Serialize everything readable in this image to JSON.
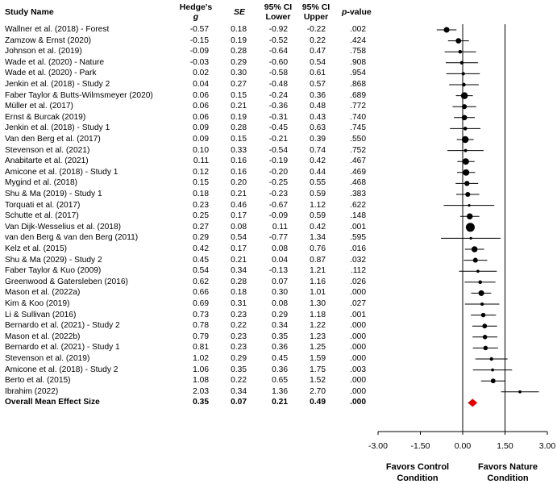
{
  "headers": {
    "study": "Study Name",
    "g_line1": "Hedge's",
    "g_line2": "g",
    "se": "SE",
    "lower_line1": "95% CI",
    "lower_line2": "Lower",
    "upper_line1": "95% CI",
    "upper_line2": "Upper",
    "p_prefix": "p",
    "p_suffix": "-value"
  },
  "rows": [
    {
      "study": "Wallner et al. (2018) - Forest",
      "g": "-0.57",
      "se": "0.18",
      "lower": "-0.92",
      "upper": "-0.22",
      "p": ".002"
    },
    {
      "study": "Zamzow & Ernst (2020)",
      "g": "-0.15",
      "se": "0.19",
      "lower": "-0.52",
      "upper": "0.22",
      "p": ".424"
    },
    {
      "study": "Johnson et al. (2019)",
      "g": "-0.09",
      "se": "0.28",
      "lower": "-0.64",
      "upper": "0.47",
      "p": ".758"
    },
    {
      "study": "Wade et al. (2020) - Nature",
      "g": "-0.03",
      "se": "0.29",
      "lower": "-0.60",
      "upper": "0.54",
      "p": ".908"
    },
    {
      "study": "Wade et al. (2020) - Park",
      "g": "0.02",
      "se": "0.30",
      "lower": "-0.58",
      "upper": "0.61",
      "p": ".954"
    },
    {
      "study": "Jenkin et al. (2018) - Study 2",
      "g": "0.04",
      "se": "0.27",
      "lower": "-0.48",
      "upper": "0.57",
      "p": ".868"
    },
    {
      "study": "Faber Taylor & Butts-Wilmsmeyer (2020)",
      "g": "0.06",
      "se": "0.15",
      "lower": "-0.24",
      "upper": "0.36",
      "p": ".689"
    },
    {
      "study": "Müller et al. (2017)",
      "g": "0.06",
      "se": "0.21",
      "lower": "-0.36",
      "upper": "0.48",
      "p": ".772"
    },
    {
      "study": "Ernst & Burcak (2019)",
      "g": "0.06",
      "se": "0.19",
      "lower": "-0.31",
      "upper": "0.43",
      "p": ".740"
    },
    {
      "study": "Jenkin et al. (2018) - Study 1",
      "g": "0.09",
      "se": "0.28",
      "lower": "-0.45",
      "upper": "0.63",
      "p": ".745"
    },
    {
      "study": "Van den Berg et al. (2017)",
      "g": "0.09",
      "se": "0.15",
      "lower": "-0.21",
      "upper": "0.39",
      "p": ".550"
    },
    {
      "study": "Stevenson et al. (2021)",
      "g": "0.10",
      "se": "0.33",
      "lower": "-0.54",
      "upper": "0.74",
      "p": ".752"
    },
    {
      "study": "Anabitarte et al. (2021)",
      "g": "0.11",
      "se": "0.16",
      "lower": "-0.19",
      "upper": "0.42",
      "p": ".467"
    },
    {
      "study": "Amicone et al. (2018) - Study 1",
      "g": "0.12",
      "se": "0.16",
      "lower": "-0.20",
      "upper": "0.44",
      "p": ".469"
    },
    {
      "study": "Mygind et al. (2018)",
      "g": "0.15",
      "se": "0.20",
      "lower": "-0.25",
      "upper": "0.55",
      "p": ".468"
    },
    {
      "study": "Shu & Ma (2019) - Study 1",
      "g": "0.18",
      "se": "0.21",
      "lower": "-0.23",
      "upper": "0.59",
      "p": ".383"
    },
    {
      "study": "Torquati et al. (2017)",
      "g": "0.23",
      "se": "0.46",
      "lower": "-0.67",
      "upper": "1.12",
      "p": ".622"
    },
    {
      "study": "Schutte et al. (2017)",
      "g": "0.25",
      "se": "0.17",
      "lower": "-0.09",
      "upper": "0.59",
      "p": ".148"
    },
    {
      "study": "Van Dijk-Wesselius et al. (2018)",
      "g": "0.27",
      "se": "0.08",
      "lower": "0.11",
      "upper": "0.42",
      "p": ".001"
    },
    {
      "study": "van den Berg & van den Berg (2011)",
      "g": "0.29",
      "se": "0.54",
      "lower": "-0.77",
      "upper": "1.34",
      "p": ".595"
    },
    {
      "study": "Kelz et al. (2015)",
      "g": "0.42",
      "se": "0.17",
      "lower": "0.08",
      "upper": "0.76",
      "p": ".016"
    },
    {
      "study": "Shu & Ma (2029) - Study 2",
      "g": "0.45",
      "se": "0.21",
      "lower": "0.04",
      "upper": "0.87",
      "p": ".032"
    },
    {
      "study": "Faber Taylor & Kuo (2009)",
      "g": "0.54",
      "se": "0.34",
      "lower": "-0.13",
      "upper": "1.21",
      "p": ".112"
    },
    {
      "study": "Greenwood & Gatersleben (2016)",
      "g": "0.62",
      "se": "0.28",
      "lower": "0.07",
      "upper": "1.16",
      "p": ".026"
    },
    {
      "study": "Mason et al. (2022a)",
      "g": "0.66",
      "se": "0.18",
      "lower": "0.30",
      "upper": "1.01",
      "p": ".000"
    },
    {
      "study": "Kim & Koo (2019)",
      "g": "0.69",
      "se": "0.31",
      "lower": "0.08",
      "upper": "1.30",
      "p": ".027"
    },
    {
      "study": "Li & Sullivan (2016)",
      "g": "0.73",
      "se": "0.23",
      "lower": "0.29",
      "upper": "1.18",
      "p": ".001"
    },
    {
      "study": "Bernardo et al. (2021) - Study 2",
      "g": "0.78",
      "se": "0.22",
      "lower": "0.34",
      "upper": "1.22",
      "p": ".000"
    },
    {
      "study": "Mason et al. (2022b)",
      "g": "0.79",
      "se": "0.23",
      "lower": "0.35",
      "upper": "1.23",
      "p": ".000"
    },
    {
      "study": "Bernardo et al. (2021) - Study 1",
      "g": "0.81",
      "se": "0.23",
      "lower": "0.36",
      "upper": "1.25",
      "p": ".000"
    },
    {
      "study": "Stevenson et al. (2019)",
      "g": "1.02",
      "se": "0.29",
      "lower": "0.45",
      "upper": "1.59",
      "p": ".000"
    },
    {
      "study": "Amicone et al. (2018) - Study 2",
      "g": "1.06",
      "se": "0.35",
      "lower": "0.36",
      "upper": "1.75",
      "p": ".003"
    },
    {
      "study": "Berto et al. (2015)",
      "g": "1.08",
      "se": "0.22",
      "lower": "0.65",
      "upper": "1.52",
      "p": ".000"
    },
    {
      "study": "Ibrahim (2022)",
      "g": "2.03",
      "se": "0.34",
      "lower": "1.36",
      "upper": "2.70",
      "p": ".000"
    }
  ],
  "overall": {
    "study": "Overall Mean Effect Size",
    "g": "0.35",
    "se": "0.07",
    "lower": "0.21",
    "upper": "0.49",
    "p": ".000"
  },
  "chart_data": {
    "type": "forest",
    "xlim": [
      -3.0,
      3.0
    ],
    "x_ticks": [
      "-3.00",
      "-1.50",
      "0.00",
      "1.50",
      "3.00"
    ],
    "reference_lines": [
      0,
      1.5
    ],
    "xlabel_left": [
      "Favors Control",
      "Condition"
    ],
    "xlabel_right": [
      "Favors Nature",
      "Condition"
    ],
    "point_color": "#000000",
    "summary_color": "#e00000"
  }
}
